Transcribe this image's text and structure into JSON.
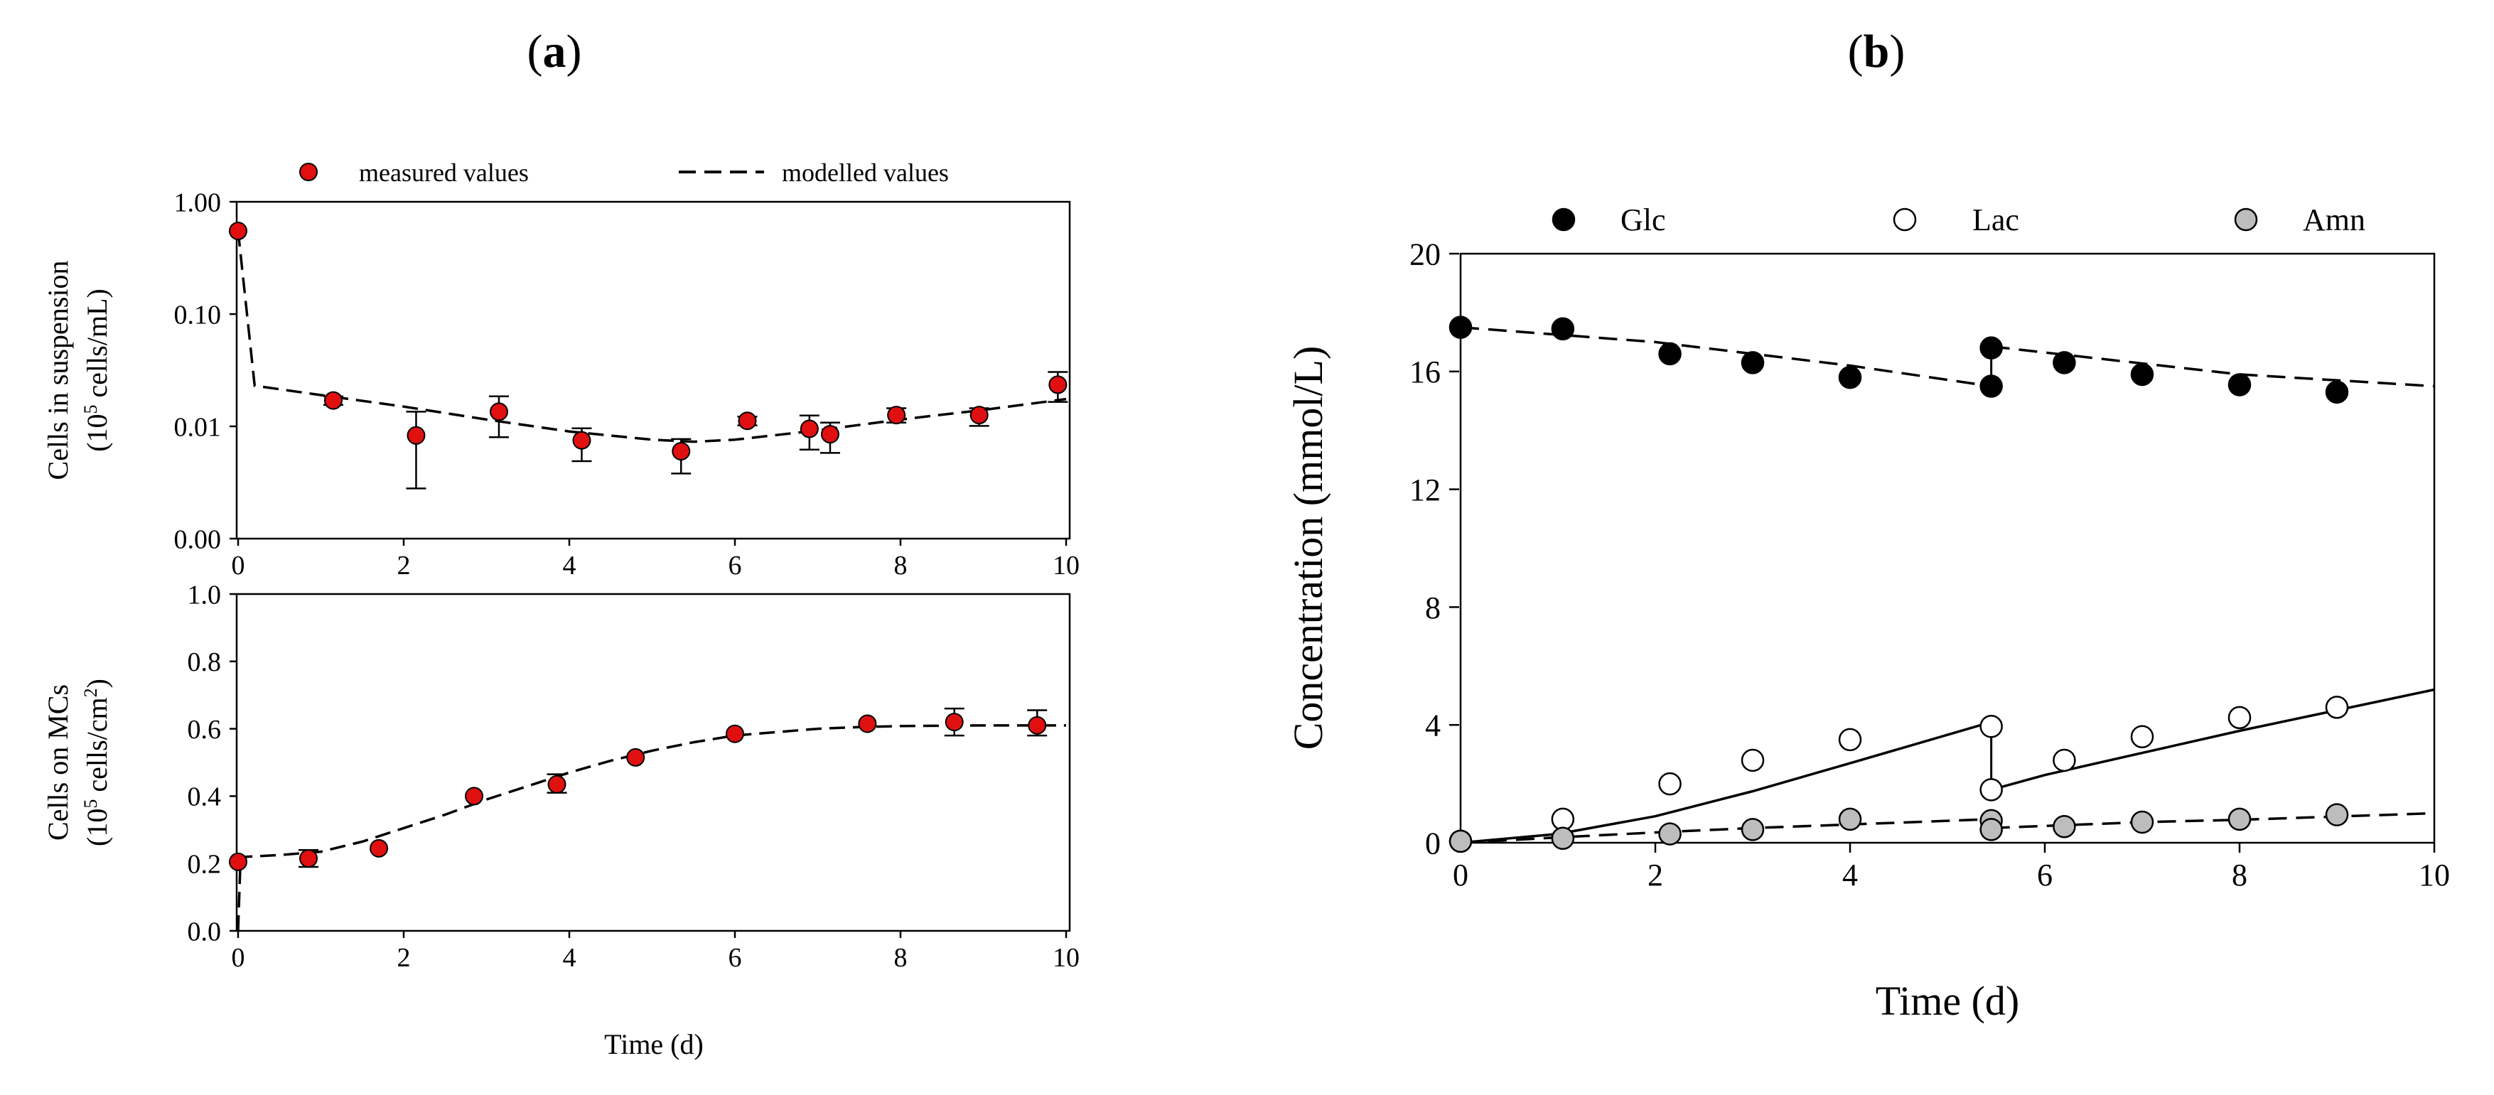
{
  "panel_a": {
    "label_open": "(",
    "label_letter": "a",
    "label_close": ")",
    "legend": {
      "measured": "measured values",
      "modelled": "modelled values"
    },
    "colors": {
      "measured": "#e01010",
      "outline": "#000000"
    }
  },
  "panel_b": {
    "label_open": "(",
    "label_letter": "b",
    "label_close": ")",
    "colors": {
      "glc": "#000000",
      "lac": "#ffffff",
      "amn": "#bdbdbd"
    }
  },
  "chart_data": [
    {
      "type": "scatter",
      "title": "Cells in suspension",
      "xlabel": "",
      "ylabel": [
        "Cells in suspension",
        "(10",
        "5",
        " cells/mL)"
      ],
      "yscale": "log",
      "xlim": [
        0,
        10
      ],
      "ylim": [
        0.001,
        1
      ],
      "xticks": [
        0,
        2,
        4,
        6,
        8,
        10
      ],
      "yticks": [
        0.001,
        0.01,
        0.1,
        1
      ],
      "ytick_labels": [
        "0.00",
        "0.01",
        "0.10",
        "1.00"
      ],
      "series": [
        {
          "name": "measured values",
          "points": [
            {
              "x": 0.0,
              "y": 0.55,
              "err": null
            },
            {
              "x": 1.15,
              "y": 0.017,
              "err": [
                0.0155,
                0.0185
              ]
            },
            {
              "x": 2.15,
              "y": 0.0083,
              "err": [
                0.0028,
                0.0135
              ]
            },
            {
              "x": 3.15,
              "y": 0.0135,
              "err": [
                0.008,
                0.0185
              ]
            },
            {
              "x": 4.15,
              "y": 0.0075,
              "err": [
                0.0049,
                0.0096
              ]
            },
            {
              "x": 5.35,
              "y": 0.006,
              "err": [
                0.0038,
                0.0077
              ]
            },
            {
              "x": 6.15,
              "y": 0.0112,
              "err": [
                0.0102,
                0.0122
              ]
            },
            {
              "x": 6.9,
              "y": 0.0095,
              "err": [
                0.0062,
                0.0125
              ]
            },
            {
              "x": 7.15,
              "y": 0.0085,
              "err": [
                0.0058,
                0.0108
              ]
            },
            {
              "x": 7.95,
              "y": 0.0126,
              "err": [
                0.0108,
                0.0145
              ]
            },
            {
              "x": 8.95,
              "y": 0.0126,
              "err": [
                0.0101,
                0.0145
              ]
            },
            {
              "x": 9.9,
              "y": 0.0235,
              "err": [
                0.0165,
                0.0305
              ]
            }
          ]
        },
        {
          "name": "modelled values",
          "style": "dashed",
          "x": [
            0.0,
            0.2,
            1.0,
            2.0,
            3.0,
            4.0,
            5.0,
            5.5,
            6.0,
            7.0,
            8.0,
            9.0,
            10.0
          ],
          "y": [
            0.55,
            0.023,
            0.019,
            0.015,
            0.0115,
            0.009,
            0.0076,
            0.0073,
            0.0076,
            0.0092,
            0.0115,
            0.014,
            0.0175
          ]
        }
      ]
    },
    {
      "type": "scatter",
      "title": "Cells on MCs",
      "xlabel": "Time (d)",
      "ylabel": [
        "Cells on MCs",
        "(10",
        "5",
        " cells/cm",
        "2",
        ")"
      ],
      "xlim": [
        0,
        10
      ],
      "ylim": [
        0,
        1
      ],
      "xticks": [
        0,
        2,
        4,
        6,
        8,
        10
      ],
      "yticks": [
        0,
        0.2,
        0.4,
        0.6,
        0.8,
        1.0
      ],
      "ytick_labels": [
        "0.0",
        "0.2",
        "0.4",
        "0.6",
        "0.8",
        "1.0"
      ],
      "series": [
        {
          "name": "measured values",
          "points": [
            {
              "x": 0.0,
              "y": 0.205,
              "err": null
            },
            {
              "x": 0.85,
              "y": 0.215,
              "err": [
                0.19,
                0.24
              ]
            },
            {
              "x": 1.7,
              "y": 0.245,
              "err": null
            },
            {
              "x": 2.85,
              "y": 0.4,
              "err": null
            },
            {
              "x": 3.85,
              "y": 0.435,
              "err": [
                0.41,
                0.465
              ]
            },
            {
              "x": 4.8,
              "y": 0.515,
              "err": null
            },
            {
              "x": 6.0,
              "y": 0.585,
              "err": null
            },
            {
              "x": 7.6,
              "y": 0.615,
              "err": null
            },
            {
              "x": 8.65,
              "y": 0.62,
              "err": [
                0.58,
                0.66
              ]
            },
            {
              "x": 9.65,
              "y": 0.61,
              "err": [
                0.58,
                0.655
              ]
            }
          ]
        },
        {
          "name": "modelled values",
          "style": "dashed",
          "x": [
            0.0,
            0.03,
            0.1,
            0.5,
            1.0,
            1.5,
            2.0,
            2.5,
            3.0,
            3.5,
            4.0,
            4.5,
            5.0,
            5.5,
            6.0,
            6.5,
            7.0,
            7.5,
            8.0,
            9.0,
            10.0
          ],
          "y": [
            0.0,
            0.22,
            0.22,
            0.225,
            0.235,
            0.265,
            0.305,
            0.345,
            0.39,
            0.43,
            0.47,
            0.505,
            0.535,
            0.56,
            0.58,
            0.59,
            0.6,
            0.605,
            0.608,
            0.61,
            0.61
          ]
        }
      ]
    },
    {
      "type": "scatter",
      "title": "",
      "xlabel": "Time (d)",
      "ylabel": "Concentration (mmol/L)",
      "xlim": [
        0,
        10
      ],
      "ylim": [
        0,
        20
      ],
      "xticks": [
        0,
        2,
        4,
        6,
        8,
        10
      ],
      "yticks": [
        0,
        4,
        8,
        12,
        16,
        20
      ],
      "series": [
        {
          "name": "Glc",
          "points": [
            [
              0,
              17.5
            ],
            [
              1.05,
              17.45
            ],
            [
              2.15,
              16.6
            ],
            [
              3.0,
              16.3
            ],
            [
              4.0,
              15.8
            ],
            [
              5.45,
              15.5
            ],
            [
              5.45,
              16.8
            ],
            [
              6.2,
              16.3
            ],
            [
              7.0,
              15.9
            ],
            [
              8.0,
              15.55
            ],
            [
              9.0,
              15.3
            ]
          ]
        },
        {
          "name": "Lac",
          "points": [
            [
              0,
              0.05
            ],
            [
              1.05,
              0.8
            ],
            [
              2.15,
              2.0
            ],
            [
              3.0,
              2.8
            ],
            [
              4.0,
              3.5
            ],
            [
              5.45,
              3.95
            ],
            [
              5.45,
              1.8
            ],
            [
              6.2,
              2.8
            ],
            [
              7.0,
              3.6
            ],
            [
              8.0,
              4.25
            ],
            [
              9.0,
              4.6
            ]
          ]
        },
        {
          "name": "Amn",
          "points": [
            [
              0,
              0.05
            ],
            [
              1.05,
              0.15
            ],
            [
              2.15,
              0.3
            ],
            [
              3.0,
              0.45
            ],
            [
              4.0,
              0.8
            ],
            [
              5.45,
              0.75
            ],
            [
              5.45,
              0.45
            ],
            [
              6.2,
              0.55
            ],
            [
              7.0,
              0.7
            ],
            [
              8.0,
              0.8
            ],
            [
              9.0,
              0.95
            ]
          ]
        }
      ],
      "model_lines": [
        {
          "name": "Glc model",
          "style": "dashed",
          "segments": [
            [
              [
                0,
                17.5
              ],
              [
                2.0,
                17.0
              ],
              [
                4.0,
                16.2
              ],
              [
                5.45,
                15.5
              ]
            ],
            [
              [
                5.45,
                16.85
              ],
              [
                8.0,
                15.9
              ],
              [
                10.0,
                15.5
              ]
            ]
          ]
        },
        {
          "name": "Lac model",
          "style": "solid",
          "segments": [
            [
              [
                0,
                0.0
              ],
              [
                1.0,
                0.3
              ],
              [
                2.0,
                0.9
              ],
              [
                3.0,
                1.75
              ],
              [
                4.0,
                2.7
              ],
              [
                5.45,
                4.1
              ]
            ],
            [
              [
                5.45,
                1.8
              ],
              [
                6.0,
                2.3
              ],
              [
                7.0,
                3.05
              ],
              [
                8.0,
                3.8
              ],
              [
                9.0,
                4.5
              ],
              [
                10.0,
                5.2
              ]
            ]
          ]
        },
        {
          "name": "Amn model",
          "style": "dashed",
          "segments": [
            [
              [
                0,
                0.0
              ],
              [
                1.0,
                0.18
              ],
              [
                2.0,
                0.35
              ],
              [
                3.0,
                0.5
              ],
              [
                4.0,
                0.62
              ],
              [
                5.45,
                0.8
              ]
            ],
            [
              [
                5.45,
                0.5
              ],
              [
                7.0,
                0.7
              ],
              [
                8.0,
                0.78
              ],
              [
                10.0,
                1.0
              ]
            ]
          ]
        }
      ]
    }
  ]
}
